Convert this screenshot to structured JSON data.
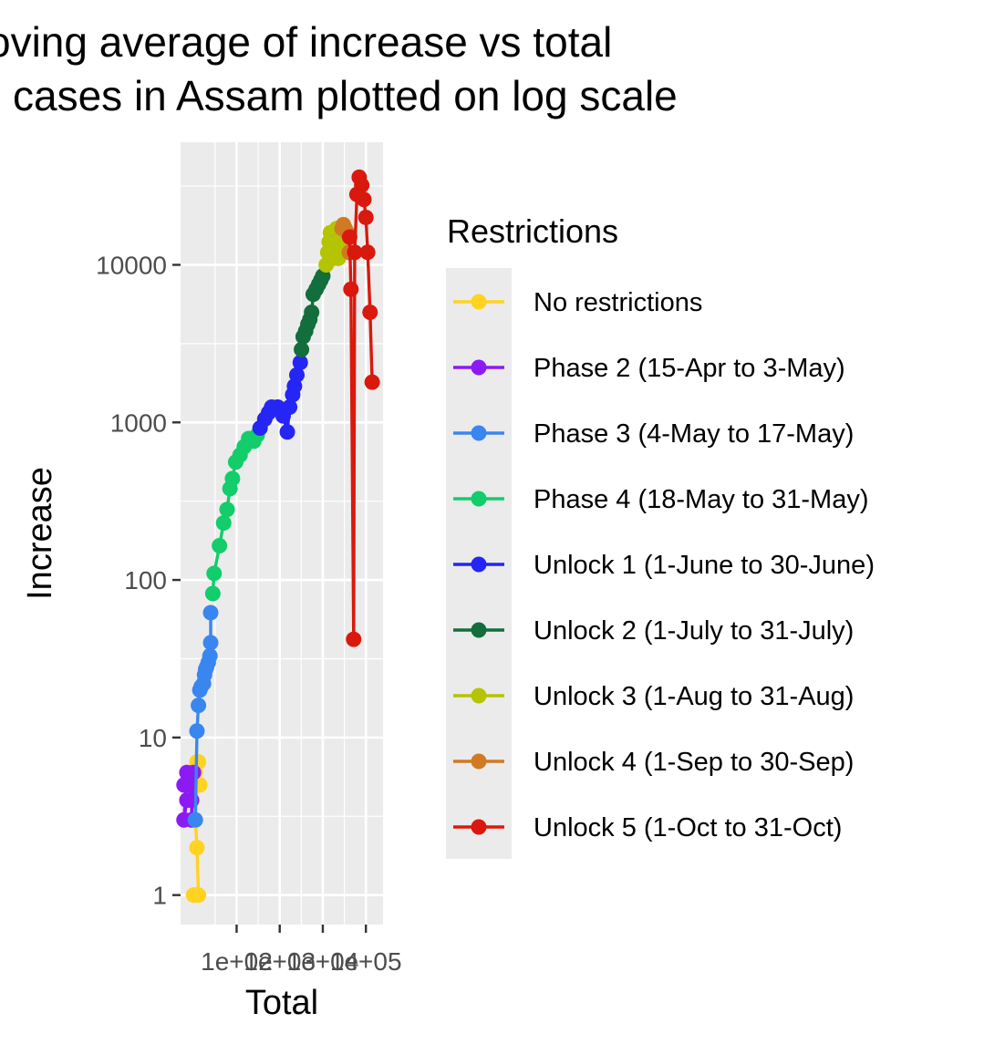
{
  "chart_data": {
    "type": "line",
    "title": [
      "oving average of increase vs total",
      "cases in Assam plotted on log scale"
    ],
    "xlabel": "Total",
    "ylabel": "Increase",
    "xscale": "log",
    "yscale": "log",
    "xlim": [
      5,
      250000
    ],
    "ylim": [
      0.65,
      60000
    ],
    "x_ticks": [
      100,
      1000,
      10000,
      100000
    ],
    "x_tick_labels": [
      "1e+02",
      "1e+03",
      "1e+04",
      "1e+05"
    ],
    "y_ticks": [
      1,
      10,
      100,
      1000,
      10000
    ],
    "y_tick_labels": [
      "1",
      "10",
      "100",
      "1000",
      "10000"
    ],
    "grid": true,
    "legend_title": "Restrictions",
    "legend_position": "right",
    "series": [
      {
        "name": "No restrictions",
        "color": "#FFD320",
        "points": [
          [
            10,
            1
          ],
          [
            11,
            1
          ],
          [
            12,
            1
          ],
          [
            13,
            1
          ],
          [
            12,
            2
          ],
          [
            11,
            3
          ],
          [
            12,
            5
          ],
          [
            11,
            6
          ],
          [
            12,
            7
          ],
          [
            13,
            7
          ],
          [
            14,
            5
          ]
        ]
      },
      {
        "name": "Phase 2 (15-Apr to 3-May)",
        "color": "#8C1AF5",
        "points": [
          [
            6,
            5
          ],
          [
            7,
            4
          ],
          [
            6,
            3
          ],
          [
            7,
            6
          ],
          [
            8,
            5
          ],
          [
            9,
            4
          ],
          [
            9,
            3
          ],
          [
            10,
            6
          ]
        ]
      },
      {
        "name": "Phase 3 (4-May to 17-May)",
        "color": "#3A86F0",
        "points": [
          [
            11,
            3
          ],
          [
            12,
            11
          ],
          [
            13,
            16
          ],
          [
            14,
            20
          ],
          [
            15,
            21
          ],
          [
            17,
            22
          ],
          [
            18,
            25
          ],
          [
            19,
            27
          ],
          [
            20,
            28
          ],
          [
            22,
            30
          ],
          [
            24,
            33
          ],
          [
            25,
            40
          ],
          [
            25,
            62
          ]
        ]
      },
      {
        "name": "Phase 4 (18-May to 31-May)",
        "color": "#12CD6A",
        "points": [
          [
            28,
            82
          ],
          [
            30,
            110
          ],
          [
            40,
            165
          ],
          [
            50,
            230
          ],
          [
            60,
            280
          ],
          [
            70,
            380
          ],
          [
            80,
            440
          ],
          [
            95,
            560
          ],
          [
            120,
            620
          ],
          [
            150,
            700
          ],
          [
            190,
            790
          ],
          [
            250,
            760
          ],
          [
            300,
            830
          ]
        ]
      },
      {
        "name": "Unlock 1 (1-June to 30-June)",
        "color": "#2525F5",
        "points": [
          [
            350,
            920
          ],
          [
            450,
            1050
          ],
          [
            550,
            1150
          ],
          [
            650,
            1250
          ],
          [
            900,
            1250
          ],
          [
            1200,
            1100
          ],
          [
            1500,
            870
          ],
          [
            1700,
            1250
          ],
          [
            2000,
            1500
          ],
          [
            2200,
            1700
          ],
          [
            2500,
            2000
          ],
          [
            3000,
            2400
          ]
        ]
      },
      {
        "name": "Unlock 2 (1-July to 31-July)",
        "color": "#126E3A",
        "points": [
          [
            3200,
            2900
          ],
          [
            3500,
            3500
          ],
          [
            4000,
            3800
          ],
          [
            4500,
            4200
          ],
          [
            5000,
            4500
          ],
          [
            5500,
            5000
          ],
          [
            6000,
            6500
          ],
          [
            7000,
            7000
          ],
          [
            8000,
            7500
          ],
          [
            9000,
            8000
          ],
          [
            10000,
            8500
          ]
        ]
      },
      {
        "name": "Unlock 3 (1-Aug to 31-Aug)",
        "color": "#B5C400",
        "points": [
          [
            12000,
            10000
          ],
          [
            13000,
            12000
          ],
          [
            14000,
            14000
          ],
          [
            15000,
            16000
          ],
          [
            16000,
            15000
          ],
          [
            17000,
            13000
          ],
          [
            18000,
            11000
          ],
          [
            19000,
            14000
          ],
          [
            20000,
            16000
          ],
          [
            21000,
            17000
          ],
          [
            22000,
            15000
          ],
          [
            23000,
            11000
          ],
          [
            25000,
            12000
          ],
          [
            27000,
            14000
          ]
        ]
      },
      {
        "name": "Unlock 4 (1-Sep to 30-Sep)",
        "color": "#D07A22",
        "points": [
          [
            28000,
            17000
          ],
          [
            30000,
            18000
          ],
          [
            33000,
            17000
          ],
          [
            37000,
            16000
          ],
          [
            41000,
            12000
          ]
        ]
      },
      {
        "name": "Unlock 5 (1-Oct to 31-Oct)",
        "color": "#D9190D",
        "points": [
          [
            42000,
            15000
          ],
          [
            45000,
            7000
          ],
          [
            52000,
            42
          ],
          [
            55000,
            12000
          ],
          [
            62000,
            28000
          ],
          [
            70000,
            36000
          ],
          [
            80000,
            32000
          ],
          [
            90000,
            26000
          ],
          [
            100000,
            20000
          ],
          [
            110000,
            12000
          ],
          [
            125000,
            5000
          ],
          [
            140000,
            1800
          ]
        ]
      }
    ]
  }
}
